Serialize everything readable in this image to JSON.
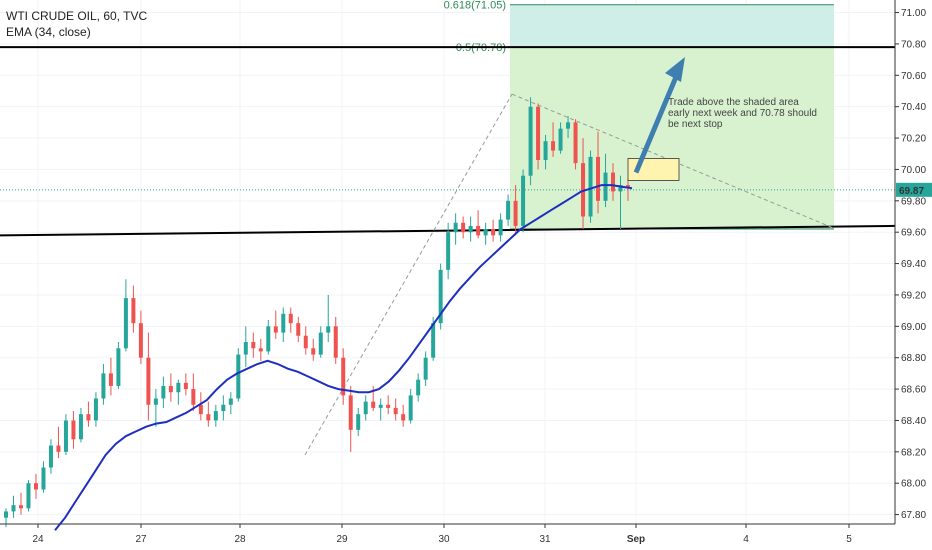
{
  "legend": {
    "title": "WTI CRUDE OIL, 60, TVC",
    "indicator": "EMA (34, close)"
  },
  "annotation": {
    "lines": [
      "Trade above the shaded area",
      " early next week and 70.78 should",
      "be next stop"
    ]
  },
  "colors": {
    "up": "#26a69a",
    "down": "#ef5350",
    "ema": "#1e2fbf",
    "support": "#000000",
    "fib_fill_lower": "#d8f2cf",
    "fib_fill_upper": "#cfeee8",
    "fib_line": "#2e8b57",
    "target_box": "#fff3b0",
    "arrow": "#3f7fb0"
  },
  "chart_data": {
    "type": "candlestick",
    "title": "WTI CRUDE OIL, 60, TVC",
    "indicator": "EMA (34, close)",
    "ylim": [
      67.74,
      71.08
    ],
    "y_ticks": [
      "71.00",
      "70.80",
      "70.60",
      "70.40",
      "70.20",
      "70.00",
      "69.80",
      "69.60",
      "69.40",
      "69.20",
      "69.00",
      "68.80",
      "68.60",
      "68.40",
      "68.20",
      "68.00",
      "67.80"
    ],
    "x_ticks": [
      "24",
      "27",
      "28",
      "29",
      "30",
      "31",
      "Sep",
      "4",
      "5"
    ],
    "last_price": "69.87",
    "fib_levels": [
      {
        "label": "0.618(71.05)",
        "value": 71.05
      },
      {
        "label": "0.5(70.78)",
        "value": 70.78
      }
    ],
    "horizontal_lines": [
      {
        "name": "resistance",
        "value": 70.78
      },
      {
        "name": "support",
        "start": 69.58,
        "end": 69.64
      }
    ],
    "candles": [
      {
        "o": 67.78,
        "h": 67.84,
        "l": 67.72,
        "c": 67.82
      },
      {
        "o": 67.82,
        "h": 67.92,
        "l": 67.78,
        "c": 67.86
      },
      {
        "o": 67.86,
        "h": 67.94,
        "l": 67.8,
        "c": 67.84
      },
      {
        "o": 67.84,
        "h": 68.02,
        "l": 67.82,
        "c": 68.0
      },
      {
        "o": 68.0,
        "h": 68.06,
        "l": 67.9,
        "c": 67.96
      },
      {
        "o": 67.96,
        "h": 68.14,
        "l": 67.94,
        "c": 68.1
      },
      {
        "o": 68.1,
        "h": 68.28,
        "l": 68.06,
        "c": 68.24
      },
      {
        "o": 68.24,
        "h": 68.36,
        "l": 68.16,
        "c": 68.2
      },
      {
        "o": 68.2,
        "h": 68.44,
        "l": 68.18,
        "c": 68.4
      },
      {
        "o": 68.4,
        "h": 68.46,
        "l": 68.22,
        "c": 68.28
      },
      {
        "o": 68.28,
        "h": 68.48,
        "l": 68.26,
        "c": 68.44
      },
      {
        "o": 68.44,
        "h": 68.52,
        "l": 68.36,
        "c": 68.4
      },
      {
        "o": 68.4,
        "h": 68.58,
        "l": 68.36,
        "c": 68.54
      },
      {
        "o": 68.54,
        "h": 68.76,
        "l": 68.5,
        "c": 68.7
      },
      {
        "o": 68.7,
        "h": 68.8,
        "l": 68.56,
        "c": 68.62
      },
      {
        "o": 68.62,
        "h": 68.9,
        "l": 68.6,
        "c": 68.86
      },
      {
        "o": 68.86,
        "h": 69.3,
        "l": 68.84,
        "c": 69.18
      },
      {
        "o": 69.18,
        "h": 69.26,
        "l": 68.96,
        "c": 69.02
      },
      {
        "o": 69.02,
        "h": 69.1,
        "l": 68.76,
        "c": 68.8
      },
      {
        "o": 68.8,
        "h": 68.96,
        "l": 68.4,
        "c": 68.5
      },
      {
        "o": 68.5,
        "h": 68.6,
        "l": 68.36,
        "c": 68.54
      },
      {
        "o": 68.54,
        "h": 68.68,
        "l": 68.48,
        "c": 68.62
      },
      {
        "o": 68.62,
        "h": 68.7,
        "l": 68.52,
        "c": 68.58
      },
      {
        "o": 68.58,
        "h": 68.66,
        "l": 68.5,
        "c": 68.64
      },
      {
        "o": 68.64,
        "h": 68.7,
        "l": 68.56,
        "c": 68.6
      },
      {
        "o": 68.6,
        "h": 68.7,
        "l": 68.46,
        "c": 68.5
      },
      {
        "o": 68.5,
        "h": 68.58,
        "l": 68.4,
        "c": 68.44
      },
      {
        "o": 68.44,
        "h": 68.52,
        "l": 68.36,
        "c": 68.4
      },
      {
        "o": 68.4,
        "h": 68.5,
        "l": 68.36,
        "c": 68.46
      },
      {
        "o": 68.46,
        "h": 68.56,
        "l": 68.4,
        "c": 68.5
      },
      {
        "o": 68.5,
        "h": 68.58,
        "l": 68.44,
        "c": 68.54
      },
      {
        "o": 68.54,
        "h": 68.86,
        "l": 68.52,
        "c": 68.82
      },
      {
        "o": 68.82,
        "h": 69.0,
        "l": 68.74,
        "c": 68.9
      },
      {
        "o": 68.9,
        "h": 68.96,
        "l": 68.8,
        "c": 68.86
      },
      {
        "o": 68.86,
        "h": 68.92,
        "l": 68.78,
        "c": 68.84
      },
      {
        "o": 68.84,
        "h": 69.04,
        "l": 68.82,
        "c": 69.0
      },
      {
        "o": 69.0,
        "h": 69.1,
        "l": 68.92,
        "c": 68.96
      },
      {
        "o": 68.96,
        "h": 69.12,
        "l": 68.9,
        "c": 69.08
      },
      {
        "o": 69.08,
        "h": 69.12,
        "l": 68.96,
        "c": 69.02
      },
      {
        "o": 69.02,
        "h": 69.06,
        "l": 68.9,
        "c": 68.94
      },
      {
        "o": 68.94,
        "h": 69.0,
        "l": 68.82,
        "c": 68.86
      },
      {
        "o": 68.86,
        "h": 68.92,
        "l": 68.78,
        "c": 68.82
      },
      {
        "o": 68.82,
        "h": 69.0,
        "l": 68.8,
        "c": 68.96
      },
      {
        "o": 68.96,
        "h": 69.2,
        "l": 68.9,
        "c": 69.0
      },
      {
        "o": 69.0,
        "h": 69.06,
        "l": 68.76,
        "c": 68.8
      },
      {
        "o": 68.8,
        "h": 68.86,
        "l": 68.5,
        "c": 68.56
      },
      {
        "o": 68.56,
        "h": 68.62,
        "l": 68.2,
        "c": 68.34
      },
      {
        "o": 68.34,
        "h": 68.48,
        "l": 68.3,
        "c": 68.44
      },
      {
        "o": 68.44,
        "h": 68.56,
        "l": 68.4,
        "c": 68.52
      },
      {
        "o": 68.52,
        "h": 68.62,
        "l": 68.46,
        "c": 68.48
      },
      {
        "o": 68.48,
        "h": 68.54,
        "l": 68.4,
        "c": 68.5
      },
      {
        "o": 68.5,
        "h": 68.56,
        "l": 68.44,
        "c": 68.48
      },
      {
        "o": 68.48,
        "h": 68.54,
        "l": 68.4,
        "c": 68.44
      },
      {
        "o": 68.44,
        "h": 68.5,
        "l": 68.36,
        "c": 68.4
      },
      {
        "o": 68.4,
        "h": 68.6,
        "l": 68.38,
        "c": 68.56
      },
      {
        "o": 68.56,
        "h": 68.7,
        "l": 68.52,
        "c": 68.66
      },
      {
        "o": 68.66,
        "h": 68.84,
        "l": 68.62,
        "c": 68.8
      },
      {
        "o": 68.8,
        "h": 69.06,
        "l": 68.78,
        "c": 69.02
      },
      {
        "o": 69.02,
        "h": 69.4,
        "l": 68.98,
        "c": 69.36
      },
      {
        "o": 69.36,
        "h": 69.66,
        "l": 69.3,
        "c": 69.6
      },
      {
        "o": 69.6,
        "h": 69.72,
        "l": 69.52,
        "c": 69.66
      },
      {
        "o": 69.66,
        "h": 69.7,
        "l": 69.56,
        "c": 69.6
      },
      {
        "o": 69.6,
        "h": 69.7,
        "l": 69.54,
        "c": 69.64
      },
      {
        "o": 69.64,
        "h": 69.74,
        "l": 69.56,
        "c": 69.58
      },
      {
        "o": 69.58,
        "h": 69.66,
        "l": 69.52,
        "c": 69.62
      },
      {
        "o": 69.62,
        "h": 69.68,
        "l": 69.54,
        "c": 69.58
      },
      {
        "o": 69.58,
        "h": 69.72,
        "l": 69.54,
        "c": 69.68
      },
      {
        "o": 69.68,
        "h": 69.84,
        "l": 69.64,
        "c": 69.8
      },
      {
        "o": 69.8,
        "h": 69.9,
        "l": 69.58,
        "c": 69.64
      },
      {
        "o": 69.64,
        "h": 70.0,
        "l": 69.6,
        "c": 69.96
      },
      {
        "o": 69.96,
        "h": 70.46,
        "l": 69.9,
        "c": 70.4
      },
      {
        "o": 70.4,
        "h": 70.42,
        "l": 70.0,
        "c": 70.06
      },
      {
        "o": 70.06,
        "h": 70.22,
        "l": 70.0,
        "c": 70.18
      },
      {
        "o": 70.18,
        "h": 70.3,
        "l": 70.08,
        "c": 70.12
      },
      {
        "o": 70.12,
        "h": 70.3,
        "l": 70.1,
        "c": 70.26
      },
      {
        "o": 70.26,
        "h": 70.34,
        "l": 70.2,
        "c": 70.3
      },
      {
        "o": 70.3,
        "h": 70.32,
        "l": 70.0,
        "c": 70.04
      },
      {
        "o": 70.04,
        "h": 70.2,
        "l": 69.62,
        "c": 69.7
      },
      {
        "o": 69.7,
        "h": 70.12,
        "l": 69.66,
        "c": 70.08
      },
      {
        "o": 70.08,
        "h": 70.24,
        "l": 69.72,
        "c": 69.8
      },
      {
        "o": 69.8,
        "h": 70.1,
        "l": 69.76,
        "c": 69.98
      },
      {
        "o": 69.98,
        "h": 70.04,
        "l": 69.8,
        "c": 69.86
      },
      {
        "o": 69.86,
        "h": 69.96,
        "l": 69.62,
        "c": 69.9
      },
      {
        "o": 69.9,
        "h": 69.94,
        "l": 69.8,
        "c": 69.88
      }
    ],
    "ema": [
      67.7,
      67.78,
      67.88,
      67.98,
      68.08,
      68.18,
      68.25,
      68.3,
      68.33,
      68.36,
      68.38,
      68.39,
      68.42,
      68.45,
      68.49,
      68.53,
      68.6,
      68.66,
      68.7,
      68.73,
      68.76,
      68.78,
      68.76,
      68.73,
      68.71,
      68.68,
      68.65,
      68.62,
      68.6,
      68.59,
      68.58,
      68.58,
      68.6,
      68.65,
      68.72,
      68.8,
      68.89,
      68.98,
      69.07,
      69.16,
      69.24,
      69.31,
      69.38,
      69.44,
      69.5,
      69.56,
      69.62,
      69.66,
      69.7,
      69.74,
      69.78,
      69.82,
      69.86,
      69.88,
      69.9,
      69.9,
      69.89,
      69.88
    ],
    "labels": {
      "y_axis_price_tag": "69.87"
    }
  }
}
